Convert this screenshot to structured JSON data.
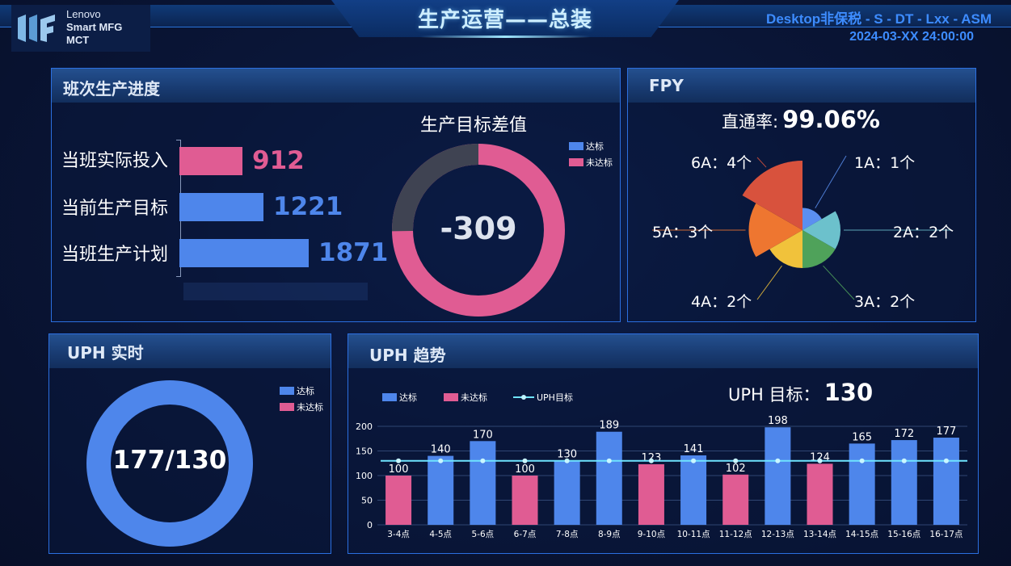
{
  "header": {
    "logo": {
      "line1": "Lenovo",
      "line2": "Smart MFG",
      "line3": "MCT"
    },
    "title": "生产运营——总装",
    "system": "Desktop非保税 - S - DT - Lxx - ASM",
    "datetime": "2024-03-XX  24:00:00"
  },
  "colors": {
    "blue": "#4e86eb",
    "pink": "#e05c93",
    "gray": "#3f4352",
    "cyan": "#6fe4ff"
  },
  "progress": {
    "title": "班次生产进度",
    "bars": [
      {
        "label": "当班实际投入",
        "value": "912",
        "num": 912,
        "color": "#e05c93"
      },
      {
        "label": "当前生产目标",
        "value": "1221",
        "num": 1221,
        "color": "#4e86eb"
      },
      {
        "label": "当班生产计划",
        "value": "1871",
        "num": 1871,
        "color": "#4e86eb"
      }
    ],
    "donut": {
      "title": "生产目标差值",
      "center": "-309",
      "legend": [
        "达标",
        "未达标"
      ],
      "reached_share": 0.252
    }
  },
  "fpy": {
    "title": "FPY",
    "rate_label": "直通率:",
    "rate_value": "99.06%",
    "slices": [
      {
        "label": "1A：1个",
        "count": 1,
        "color": "#5b8ff0"
      },
      {
        "label": "2A：2个",
        "count": 2,
        "color": "#6cc1cc"
      },
      {
        "label": "3A：2个",
        "count": 2,
        "color": "#4fa25a"
      },
      {
        "label": "4A：2个",
        "count": 2,
        "color": "#f1c23b"
      },
      {
        "label": "5A：3个",
        "count": 3,
        "color": "#ee7630"
      },
      {
        "label": "6A：4个",
        "count": 4,
        "color": "#d8523d"
      }
    ]
  },
  "uph_realtime": {
    "title": "UPH 实时",
    "legend": [
      "达标",
      "未达标"
    ],
    "center": "177/130",
    "reached_share": 1.0
  },
  "uph_trend": {
    "title": "UPH 趋势",
    "legend": [
      "达标",
      "未达标",
      "UPH目标"
    ],
    "target_label": "UPH 目标：",
    "target_value": "130"
  },
  "chart_data": {
    "type": "bar",
    "categories": [
      "3-4点",
      "4-5点",
      "5-6点",
      "6-7点",
      "7-8点",
      "8-9点",
      "9-10点",
      "10-11点",
      "11-12点",
      "12-13点",
      "13-14点",
      "14-15点",
      "15-16点",
      "16-17点"
    ],
    "values": [
      100,
      140,
      170,
      100,
      130,
      189,
      123,
      141,
      102,
      198,
      124,
      165,
      172,
      177
    ],
    "status": [
      "未达标",
      "达标",
      "达标",
      "未达标",
      "达标",
      "达标",
      "未达标",
      "达标",
      "未达标",
      "达标",
      "未达标",
      "达标",
      "达标",
      "达标"
    ],
    "target": 130,
    "ylim": [
      0,
      200
    ],
    "yticks": [
      0,
      50,
      100,
      150,
      200
    ],
    "legend": [
      "达标",
      "未达标",
      "UPH目标"
    ]
  }
}
